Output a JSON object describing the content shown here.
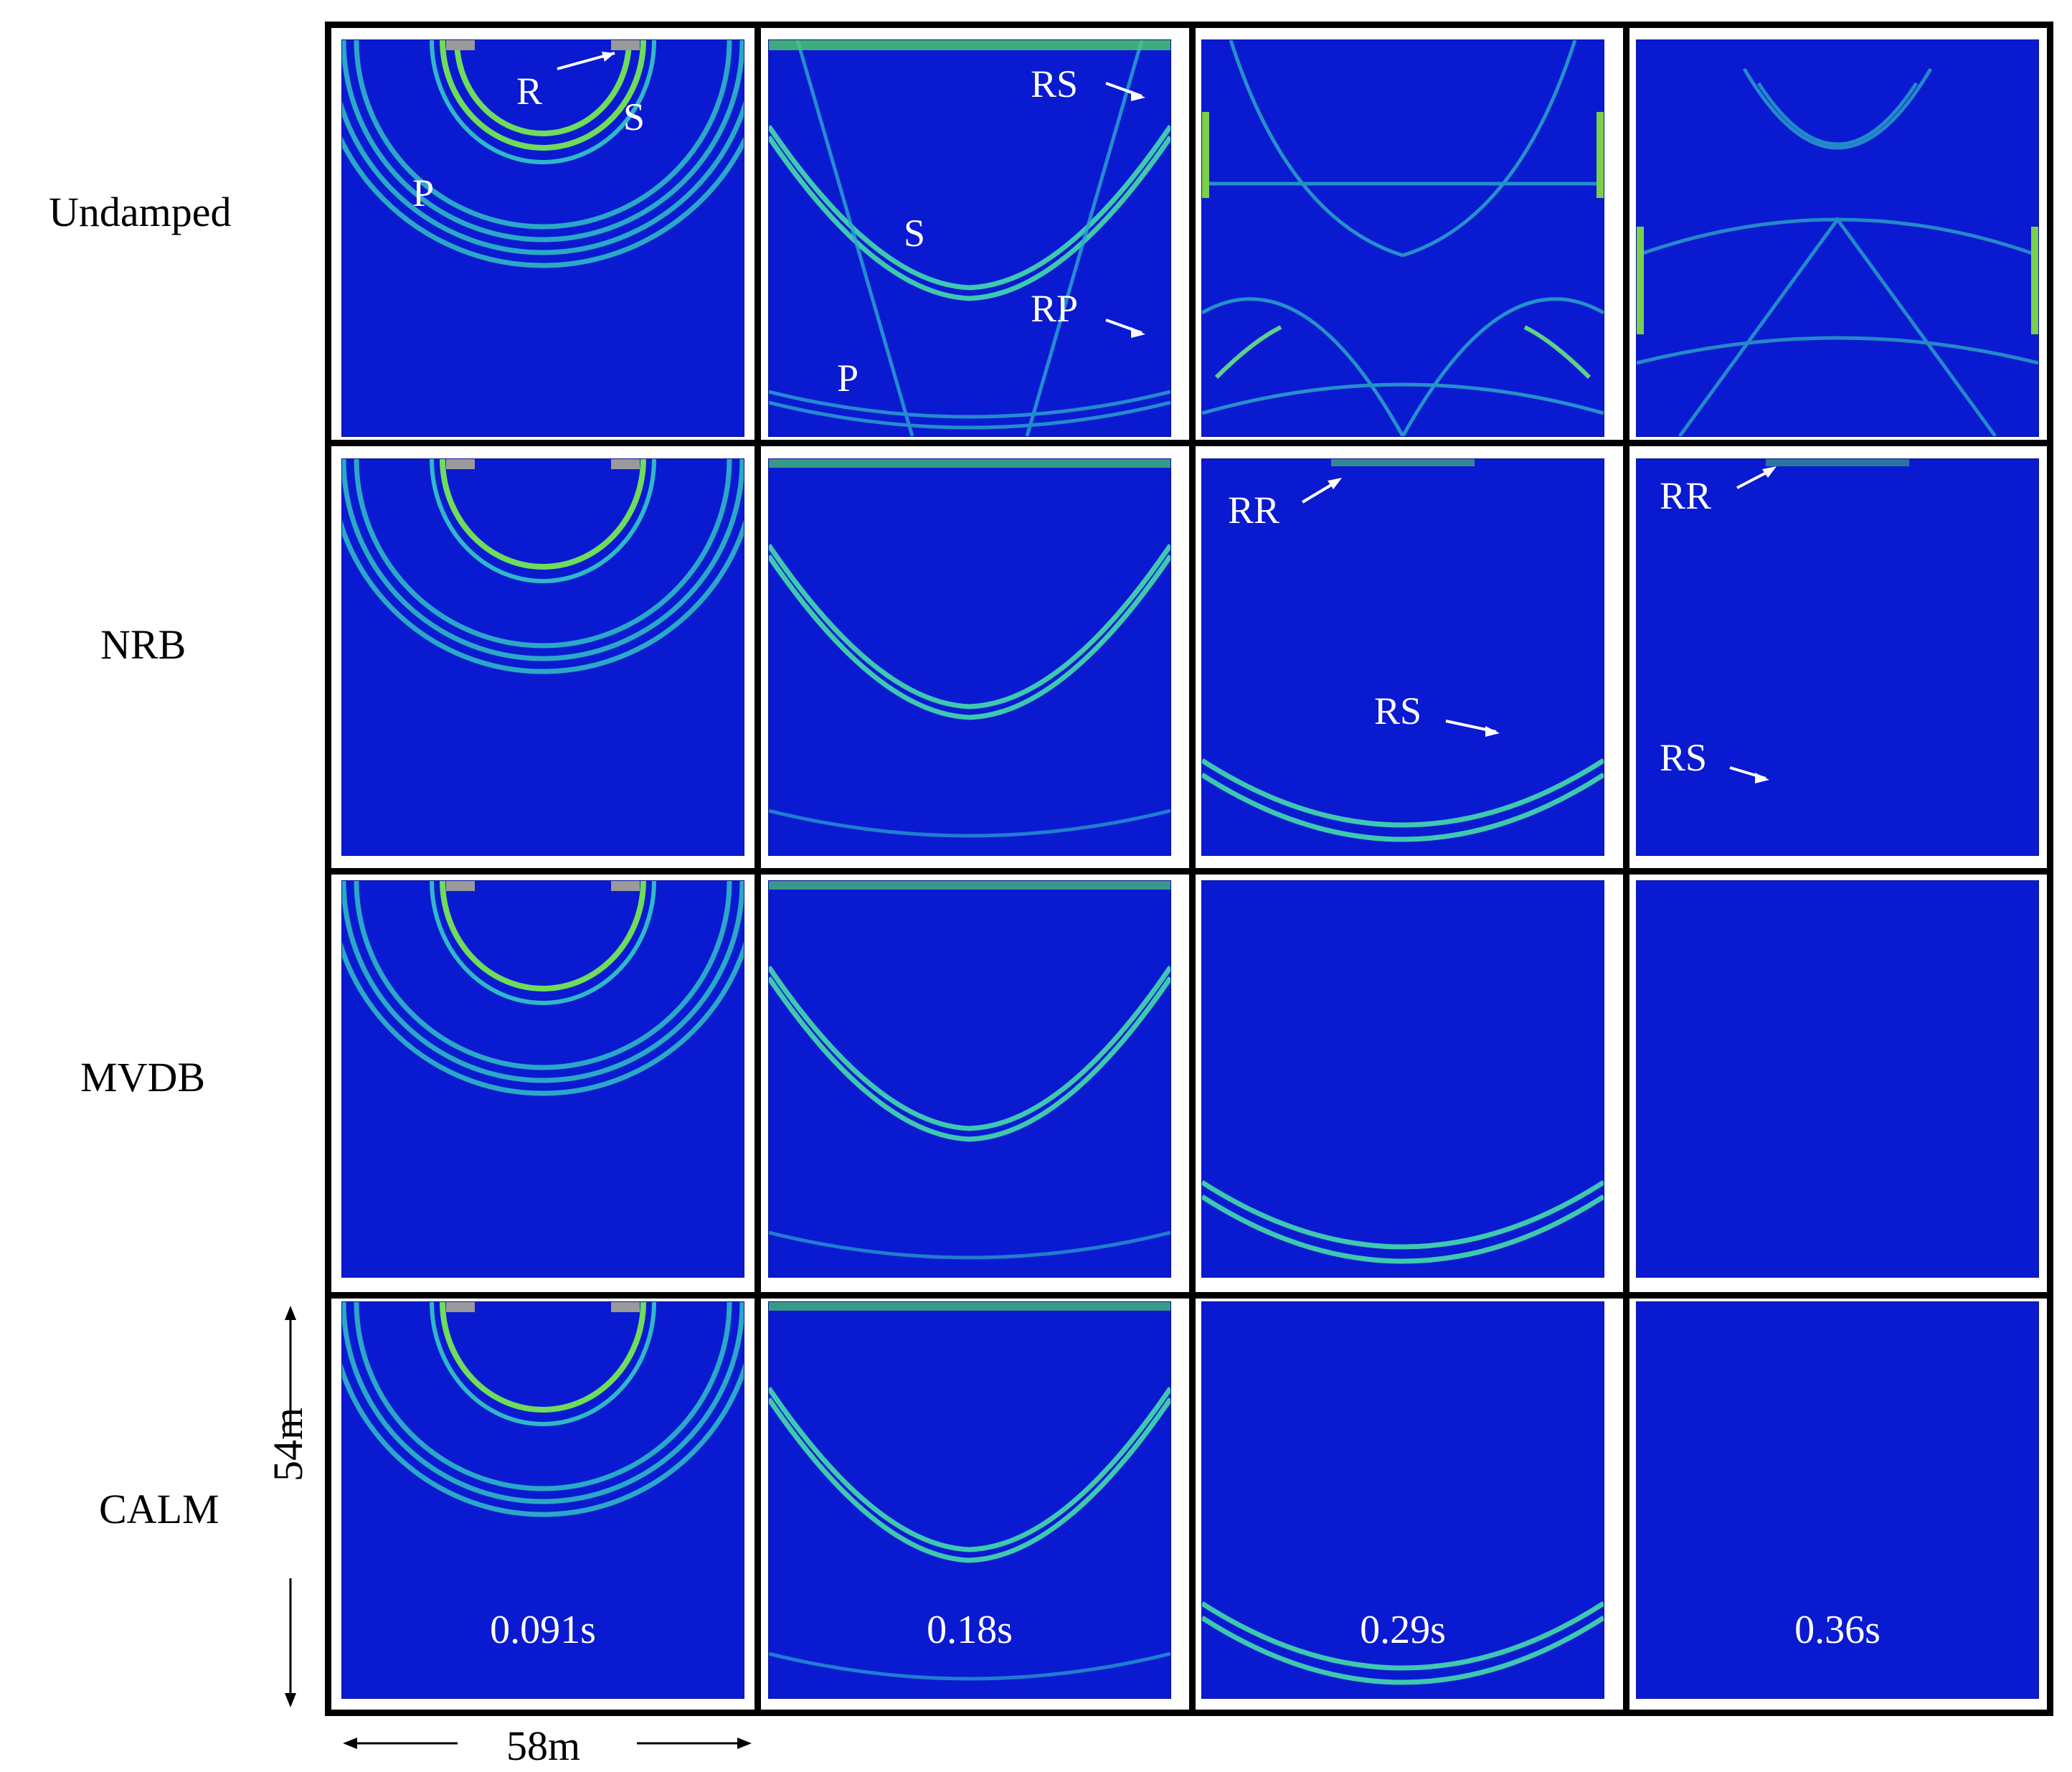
{
  "figure": {
    "rows": [
      {
        "label": "Undamped"
      },
      {
        "label": "NRB"
      },
      {
        "label": "MVDB"
      },
      {
        "label": "CALM"
      }
    ],
    "times": [
      "0.091s",
      "0.18s",
      "0.29s",
      "0.36s"
    ],
    "annotations": {
      "undamped_t1_R": "R",
      "undamped_t1_S": "S",
      "undamped_t1_P": "P",
      "undamped_t2_RS": "RS",
      "undamped_t2_S": "S",
      "undamped_t2_RP": "RP",
      "undamped_t2_P": "P",
      "nrb_t3_RR": "RR",
      "nrb_t3_RS": "RS",
      "nrb_t4_RR": "RR",
      "nrb_t4_RS": "RS"
    },
    "scale": {
      "width": "58m",
      "height": "54m"
    },
    "colors": {
      "background": "#0a1ad0",
      "wave": "#35c8c8",
      "wave_strong": "#7fe04a",
      "annotation": "#ffffff"
    }
  }
}
